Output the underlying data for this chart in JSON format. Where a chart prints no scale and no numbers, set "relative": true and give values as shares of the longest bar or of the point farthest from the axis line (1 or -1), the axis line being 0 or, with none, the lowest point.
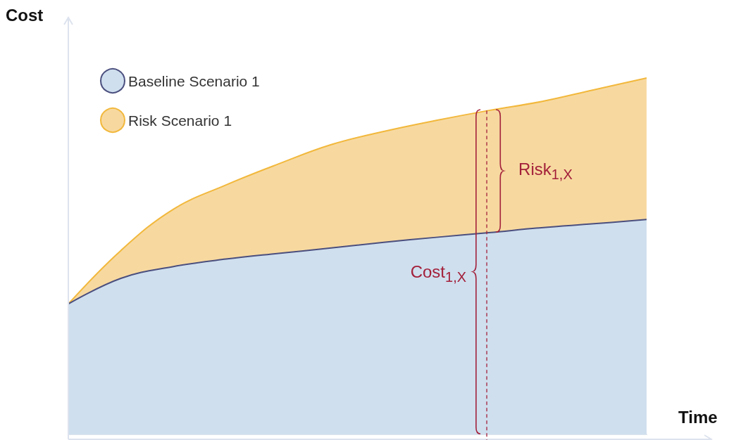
{
  "chart_data": {
    "type": "area",
    "relative": true,
    "xlabel": "Time",
    "ylabel": "Cost",
    "legend": "top left",
    "categories": [
      null,
      null,
      null,
      null,
      null,
      null,
      null,
      null,
      null,
      null,
      null,
      null
    ],
    "series": [
      {
        "name": "Risk Scenario 1",
        "color": "#f7d9a0",
        "values": [
          0.366,
          0.516,
          0.632,
          0.7,
          0.759,
          0.813,
          0.85,
          0.881,
          0.909,
          0.934,
          0.967,
          1
        ]
      },
      {
        "name": "Baseline Scenario 1",
        "color": "#cfdfee",
        "values": [
          0.366,
          0.438,
          0.471,
          0.492,
          0.508,
          0.523,
          0.539,
          0.553,
          0.566,
          0.58,
          0.591,
          0.603
        ]
      }
    ],
    "annotations": [
      "Risk$_{1,X}$",
      "Cost$_{1,X}$"
    ]
  }
}
